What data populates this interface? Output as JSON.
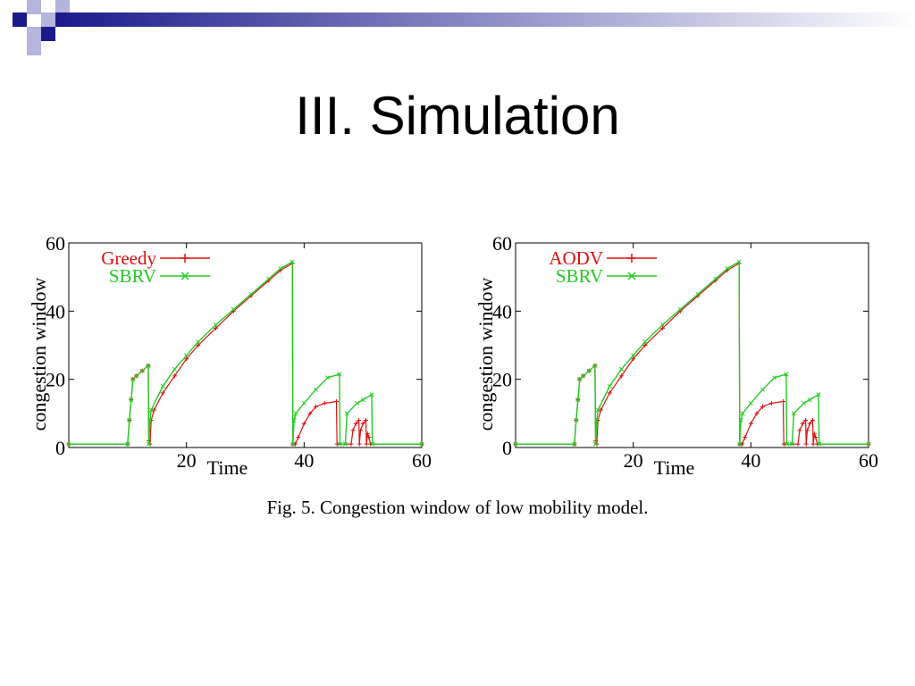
{
  "slide": {
    "title": "III. Simulation",
    "caption": "Fig. 5. Congestion window of low mobility model."
  },
  "colors": {
    "deco_dark": "#1a1a8c",
    "deco_light": "#b4b4dc",
    "series_red": "#dd1111",
    "series_green": "#22cc22"
  },
  "chart_data": [
    {
      "type": "line",
      "title": "",
      "xlabel": "Time",
      "ylabel": "congestion window",
      "xlim": [
        0,
        60
      ],
      "ylim": [
        0,
        60
      ],
      "xticks": [
        20,
        40,
        60
      ],
      "yticks": [
        0,
        20,
        40,
        60
      ],
      "legend_position": "top-left",
      "grid": false,
      "series": [
        {
          "name": "Greedy",
          "color": "#dd1111",
          "marker": "plus",
          "points": [
            [
              0,
              1
            ],
            [
              10,
              1
            ],
            [
              10.3,
              8
            ],
            [
              10.6,
              14
            ],
            [
              10.9,
              20
            ],
            [
              11.5,
              21
            ],
            [
              12.5,
              22.5
            ],
            [
              13.5,
              24
            ],
            [
              13.6,
              2
            ],
            [
              13.8,
              1
            ],
            [
              14,
              8
            ],
            [
              14.5,
              11
            ],
            [
              16,
              16
            ],
            [
              18,
              21
            ],
            [
              20,
              26
            ],
            [
              22,
              30
            ],
            [
              25,
              35
            ],
            [
              28,
              40
            ],
            [
              31,
              44.5
            ],
            [
              34,
              49
            ],
            [
              36,
              52
            ],
            [
              38,
              54
            ],
            [
              38.1,
              1
            ],
            [
              38.5,
              1
            ],
            [
              39,
              3
            ],
            [
              40,
              7
            ],
            [
              41,
              10
            ],
            [
              42,
              12
            ],
            [
              43.5,
              13
            ],
            [
              45.5,
              13.5
            ],
            [
              45.6,
              1
            ],
            [
              48,
              1
            ],
            [
              48.3,
              5
            ],
            [
              48.8,
              7
            ],
            [
              49.3,
              8
            ],
            [
              49.4,
              1
            ],
            [
              49.6,
              5
            ],
            [
              50,
              7
            ],
            [
              50.5,
              8
            ],
            [
              50.6,
              1
            ],
            [
              50.8,
              4
            ],
            [
              51,
              3
            ],
            [
              51.3,
              1
            ],
            [
              60,
              1
            ]
          ]
        },
        {
          "name": "SBRV",
          "color": "#22cc22",
          "marker": "x",
          "points": [
            [
              0,
              1
            ],
            [
              10,
              1
            ],
            [
              10.3,
              8
            ],
            [
              10.6,
              14
            ],
            [
              10.9,
              20
            ],
            [
              11.5,
              21
            ],
            [
              12.5,
              22.5
            ],
            [
              13.5,
              24
            ],
            [
              13.6,
              1
            ],
            [
              13.8,
              8
            ],
            [
              14,
              11
            ],
            [
              16,
              18
            ],
            [
              18,
              23
            ],
            [
              20,
              27
            ],
            [
              22,
              31
            ],
            [
              25,
              36
            ],
            [
              28,
              40.5
            ],
            [
              31,
              45
            ],
            [
              34,
              49.5
            ],
            [
              36,
              52.5
            ],
            [
              38,
              54.5
            ],
            [
              38.1,
              1
            ],
            [
              38.3,
              8
            ],
            [
              38.6,
              10
            ],
            [
              40,
              13
            ],
            [
              42,
              17
            ],
            [
              44,
              20.5
            ],
            [
              46,
              21.5
            ],
            [
              46.1,
              1
            ],
            [
              47,
              1
            ],
            [
              47.3,
              10
            ],
            [
              49,
              13
            ],
            [
              50,
              14
            ],
            [
              51.5,
              15.5
            ],
            [
              51.6,
              1
            ],
            [
              60,
              1
            ]
          ]
        }
      ]
    },
    {
      "type": "line",
      "title": "",
      "xlabel": "Time",
      "ylabel": "congestion window",
      "xlim": [
        0,
        60
      ],
      "ylim": [
        0,
        60
      ],
      "xticks": [
        20,
        40,
        60
      ],
      "yticks": [
        0,
        20,
        40,
        60
      ],
      "legend_position": "top-left",
      "grid": false,
      "series": [
        {
          "name": "AODV",
          "color": "#dd1111",
          "marker": "plus",
          "points": [
            [
              0,
              1
            ],
            [
              10,
              1
            ],
            [
              10.3,
              8
            ],
            [
              10.6,
              14
            ],
            [
              10.9,
              20
            ],
            [
              11.5,
              21
            ],
            [
              12.5,
              22.5
            ],
            [
              13.5,
              24
            ],
            [
              13.6,
              2
            ],
            [
              13.8,
              1
            ],
            [
              14,
              8
            ],
            [
              14.5,
              11
            ],
            [
              16,
              16
            ],
            [
              18,
              21
            ],
            [
              20,
              26
            ],
            [
              22,
              30
            ],
            [
              25,
              35
            ],
            [
              28,
              40
            ],
            [
              31,
              44.5
            ],
            [
              34,
              49
            ],
            [
              36,
              52
            ],
            [
              38,
              54
            ],
            [
              38.1,
              1
            ],
            [
              38.5,
              1
            ],
            [
              39,
              3
            ],
            [
              40,
              7
            ],
            [
              41,
              10
            ],
            [
              42,
              12
            ],
            [
              43.5,
              13
            ],
            [
              45.5,
              13.5
            ],
            [
              45.6,
              1
            ],
            [
              48,
              1
            ],
            [
              48.3,
              5
            ],
            [
              48.8,
              7
            ],
            [
              49.3,
              8
            ],
            [
              49.4,
              1
            ],
            [
              49.6,
              5
            ],
            [
              50,
              7
            ],
            [
              50.5,
              8
            ],
            [
              50.6,
              1
            ],
            [
              50.8,
              4
            ],
            [
              51,
              3
            ],
            [
              51.3,
              1
            ],
            [
              60,
              1
            ]
          ]
        },
        {
          "name": "SBRV",
          "color": "#22cc22",
          "marker": "x",
          "points": [
            [
              0,
              1
            ],
            [
              10,
              1
            ],
            [
              10.3,
              8
            ],
            [
              10.6,
              14
            ],
            [
              10.9,
              20
            ],
            [
              11.5,
              21
            ],
            [
              12.5,
              22.5
            ],
            [
              13.5,
              24
            ],
            [
              13.6,
              1
            ],
            [
              13.8,
              8
            ],
            [
              14,
              11
            ],
            [
              16,
              18
            ],
            [
              18,
              23
            ],
            [
              20,
              27
            ],
            [
              22,
              31
            ],
            [
              25,
              36
            ],
            [
              28,
              40.5
            ],
            [
              31,
              45
            ],
            [
              34,
              49.5
            ],
            [
              36,
              52.5
            ],
            [
              38,
              54.5
            ],
            [
              38.1,
              1
            ],
            [
              38.3,
              8
            ],
            [
              38.6,
              10
            ],
            [
              40,
              13
            ],
            [
              42,
              17
            ],
            [
              44,
              20.5
            ],
            [
              46,
              21.5
            ],
            [
              46.1,
              1
            ],
            [
              47,
              1
            ],
            [
              47.3,
              10
            ],
            [
              49,
              13
            ],
            [
              50,
              14
            ],
            [
              51.5,
              15.5
            ],
            [
              51.6,
              1
            ],
            [
              60,
              1
            ]
          ]
        }
      ]
    }
  ]
}
